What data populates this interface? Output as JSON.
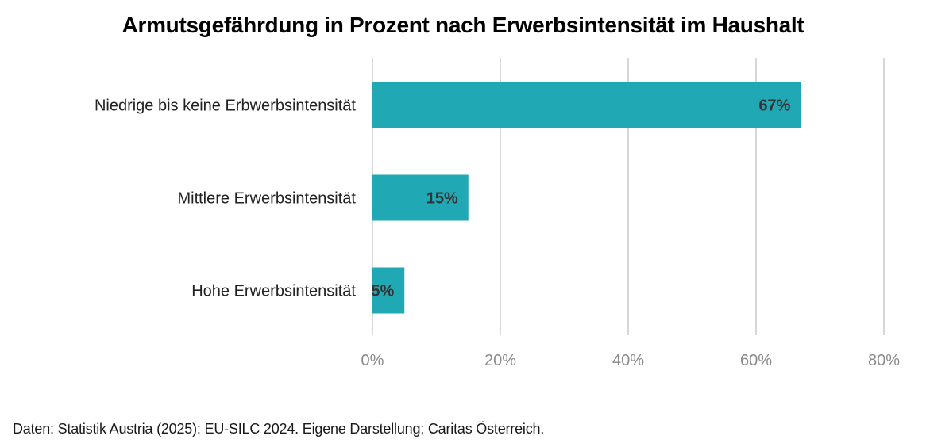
{
  "chart_data": {
    "type": "bar",
    "orientation": "horizontal",
    "title": "Armutsgefährdung in Prozent nach Erwerbsintensität im Haushalt",
    "categories": [
      "Niedrige bis keine Erbwerbsintensität",
      "Mittlere Erwerbsintensität",
      "Hohe Erwerbsintensität"
    ],
    "values": [
      67,
      15,
      5
    ],
    "value_labels": [
      "67%",
      "15%",
      "5%"
    ],
    "xlim": [
      0,
      80
    ],
    "x_ticks": [
      0,
      20,
      40,
      60,
      80
    ],
    "x_tick_labels": [
      "0%",
      "20%",
      "40%",
      "60%",
      "80%"
    ],
    "xlabel": "",
    "ylabel": "",
    "grid": true,
    "legend": "none",
    "bar_color": "#20a8b4",
    "grid_color": "#cccccc"
  },
  "source": "Daten: Statistik Austria (2025): EU-SILC 2024. Eigene Darstellung; Caritas Österreich."
}
